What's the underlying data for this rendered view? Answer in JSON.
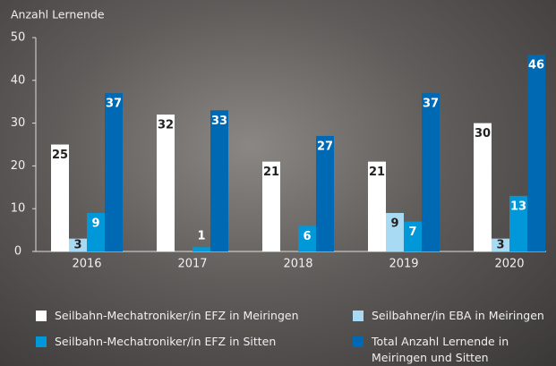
{
  "chart_data": {
    "type": "bar",
    "y_label": "Anzahl Lernende",
    "categories": [
      "2016",
      "2017",
      "2018",
      "2019",
      "2020"
    ],
    "series": [
      {
        "name": "Seilbahn-Mechatroniker/in EFZ in Meiringen",
        "color": "#ffffff",
        "values": [
          25,
          32,
          21,
          21,
          30
        ]
      },
      {
        "name": "Seilbahner/in EBA in Meiringen",
        "color": "#a9daf4",
        "values": [
          3,
          null,
          null,
          9,
          3
        ]
      },
      {
        "name": "Seilbahn-Mechatroniker/in EFZ in Sitten",
        "color": "#0098d8",
        "values": [
          9,
          1,
          6,
          7,
          13
        ]
      },
      {
        "name": "Total Anzahl Lernende in Meiringen und Sitten",
        "color": "#0069b4",
        "values": [
          37,
          33,
          27,
          37,
          46
        ]
      }
    ],
    "ylim": [
      0,
      50
    ],
    "yticks": [
      0,
      10,
      20,
      30,
      40,
      50
    ]
  }
}
